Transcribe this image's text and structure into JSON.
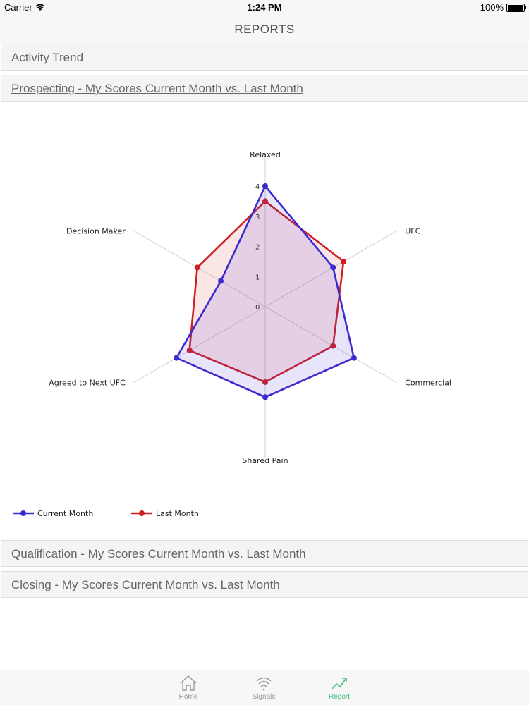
{
  "status_bar": {
    "carrier": "Carrier",
    "time": "1:24 PM",
    "battery": "100%",
    "battery_level": 1.0
  },
  "nav": {
    "title": "REPORTS"
  },
  "sections": [
    {
      "label": "Activity Trend"
    },
    {
      "label": "Prospecting - My Scores Current Month vs. Last Month"
    },
    {
      "label": "Qualification - My Scores Current Month vs. Last Month"
    },
    {
      "label": "Closing - My Scores Current Month vs. Last Month"
    }
  ],
  "chart_data": {
    "type": "radar",
    "axes": [
      "Relaxed",
      "UFC",
      "Commercial",
      "Shared Pain",
      "Agreed to Next UFC",
      "Decision Maker"
    ],
    "ticks": [
      "0",
      "1",
      "2",
      "3",
      "4"
    ],
    "range": [
      0,
      4
    ],
    "series": [
      {
        "name": "Current Month",
        "color": "#3b2ad0",
        "values": [
          4.0,
          2.6,
          3.4,
          3.0,
          3.4,
          1.7
        ]
      },
      {
        "name": "Last Month",
        "color": "#cf1f24",
        "values": [
          3.5,
          3.0,
          2.6,
          2.5,
          2.9,
          2.6
        ]
      }
    ],
    "legend_position": "bottom-left",
    "grid": true
  },
  "tab_bar": {
    "items": [
      {
        "label": "Home",
        "icon": "home-icon"
      },
      {
        "label": "Signals",
        "icon": "signals-icon"
      },
      {
        "label": "Report",
        "icon": "report-icon",
        "active": true
      }
    ],
    "active_color": "#3fbf7f"
  }
}
